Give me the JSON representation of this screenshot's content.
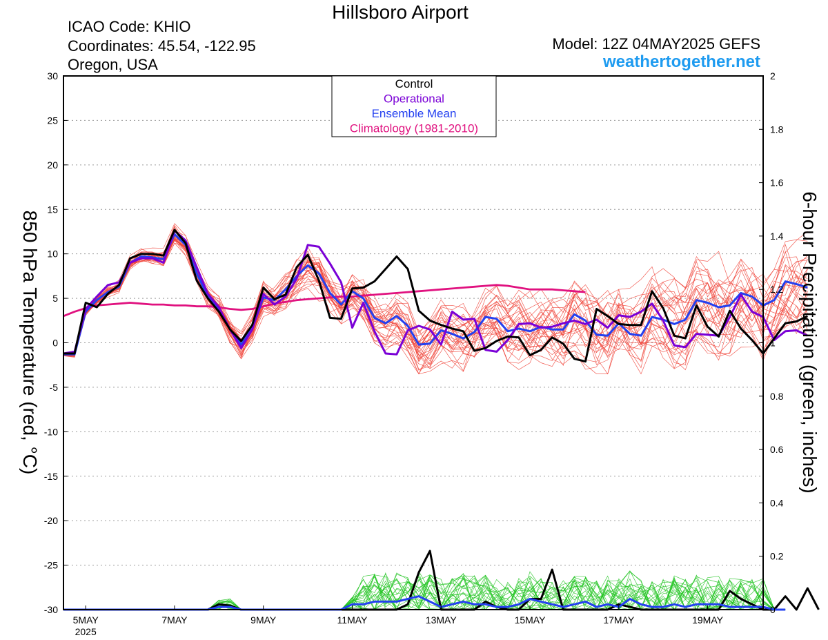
{
  "header": {
    "title": "Hillsboro Airport",
    "icao": "ICAO Code: KHIO",
    "coordinates": "Coordinates: 45.54, -122.95",
    "region": "Oregon, USA",
    "model": "Model: 12Z 04MAY2025 GEFS",
    "site": "weathertogether.net"
  },
  "chart_data": {
    "type": "line",
    "title": "Hillsboro Airport",
    "ylabel": "850 hPa Temperature (red, °C)",
    "y2label": "6-hour Precipitation (green, inches)",
    "ylim": [
      -30,
      30
    ],
    "y2lim": [
      0,
      2
    ],
    "xlim": [
      0,
      63
    ],
    "x_unit": "6-hour steps from 12Z 04MAY2025",
    "yticks": [
      "30",
      "25",
      "20",
      "15",
      "10",
      "5",
      "0",
      "-5",
      "-10",
      "-15",
      "-20",
      "-25",
      "-30"
    ],
    "y2ticks": [
      "2",
      "1.8",
      "1.6",
      "1.4",
      "1.2",
      "1",
      "0.8",
      "0.6",
      "0.4",
      "0.2",
      "0"
    ],
    "xticks": [
      {
        "label": "5MAY",
        "sub": "2025",
        "x": 2
      },
      {
        "label": "7MAY",
        "sub": "",
        "x": 10
      },
      {
        "label": "9MAY",
        "sub": "",
        "x": 18
      },
      {
        "label": "11MAY",
        "sub": "",
        "x": 26
      },
      {
        "label": "13MAY",
        "sub": "",
        "x": 34
      },
      {
        "label": "15MAY",
        "sub": "",
        "x": 42
      },
      {
        "label": "17MAY",
        "sub": "",
        "x": 50
      },
      {
        "label": "19MAY",
        "sub": "",
        "x": 58
      }
    ],
    "grid": true,
    "legend": {
      "placement": "top-center",
      "entries": [
        {
          "name": "Control",
          "color": "#000000"
        },
        {
          "name": "Operational",
          "color": "#7a00d6"
        },
        {
          "name": "Ensemble Mean",
          "color": "#2340f0"
        },
        {
          "name": "Climatology (1981-2010)",
          "color": "#e0117f"
        }
      ]
    },
    "series": [
      {
        "name": "Climatology (1981-2010)",
        "color": "#e0117f",
        "axis": "temp",
        "values": [
          3.0,
          3.5,
          3.9,
          4.2,
          4.3,
          4.4,
          4.5,
          4.4,
          4.3,
          4.3,
          4.2,
          4.2,
          4.1,
          4.1,
          4.0,
          3.8,
          3.7,
          3.8,
          4.1,
          4.4,
          4.6,
          4.8,
          4.9,
          5.0,
          5.1,
          5.2,
          5.2,
          5.3,
          5.4,
          5.5,
          5.6,
          5.7,
          5.8,
          5.9,
          6.0,
          6.1,
          6.2,
          6.3,
          6.4,
          6.5,
          6.4,
          6.2,
          6.0,
          6.0,
          6.0,
          5.9,
          5.8,
          5.7
        ]
      },
      {
        "name": "Control",
        "color": "#000000",
        "axis": "temp",
        "values": [
          -1.2,
          -1.2,
          4.5,
          4.0,
          5.5,
          6.5,
          9.5,
          10.0,
          10.0,
          9.8,
          12.7,
          11.2,
          7.0,
          5.0,
          3.5,
          1.5,
          0.2,
          2.0,
          6.2,
          4.9,
          5.4,
          8.5,
          9.9,
          7.0,
          2.8,
          2.7,
          6.1,
          6.2,
          6.9,
          8.3,
          9.7,
          8.3,
          3.6,
          2.5,
          2.0,
          1.6,
          1.3,
          -0.9,
          -0.6,
          0.2,
          0.7,
          0.6,
          -1.4,
          -0.8,
          0.6,
          -0.1,
          -1.8,
          -2.1,
          3.8,
          3.0,
          2.1,
          2.0,
          2.0,
          5.8,
          3.9,
          0.8,
          0.5,
          4.2,
          1.8,
          0.7,
          3.6,
          1.6,
          0.3,
          -1.2,
          0.5,
          2.2,
          2.4,
          3.0
        ]
      },
      {
        "name": "Operational",
        "color": "#7a00d6",
        "axis": "temp",
        "values": [
          -1.2,
          -1.0,
          3.8,
          5.2,
          6.5,
          6.8,
          9.0,
          9.5,
          9.5,
          9.0,
          12.6,
          11.5,
          8.5,
          5.5,
          4.0,
          1.5,
          -0.6,
          1.5,
          5.5,
          4.3,
          5.2,
          7.2,
          11.0,
          10.8,
          8.9,
          6.8,
          1.7,
          4.5,
          1.3,
          -1.2,
          -1.3,
          1.4,
          1.9,
          1.5,
          -0.2,
          3.5,
          2.6,
          2.7,
          -0.8,
          -1.0,
          0.3,
          2.1,
          2.2,
          1.7,
          1.8,
          2.2,
          2.5,
          2.1,
          2.6,
          1.7,
          3.1,
          2.9,
          3.5,
          4.4,
          2.5,
          -0.3,
          -0.5,
          1.0,
          0.9,
          0.8,
          2.9,
          5.4,
          3.5,
          2.9,
          0.3,
          1.3,
          1.4,
          0.8
        ]
      },
      {
        "name": "Ensemble Mean",
        "color": "#2340f0",
        "axis": "temp",
        "values": [
          -1.3,
          -1.3,
          3.5,
          4.8,
          5.7,
          6.3,
          9.0,
          9.7,
          9.6,
          9.4,
          12.2,
          11.0,
          7.8,
          5.2,
          3.8,
          1.5,
          -0.2,
          1.6,
          5.1,
          4.8,
          6.0,
          7.5,
          8.7,
          7.8,
          5.6,
          4.3,
          5.8,
          5.0,
          2.8,
          2.2,
          3.0,
          1.9,
          -0.2,
          -0.1,
          1.4,
          1.0,
          0.5,
          1.2,
          2.9,
          2.7,
          1.3,
          1.6,
          1.3,
          1.8,
          1.5,
          1.5,
          3.2,
          2.5,
          0.9,
          0.8,
          2.2,
          1.0,
          0.8,
          2.9,
          2.6,
          2.1,
          2.6,
          4.8,
          4.5,
          4.0,
          4.2,
          5.6,
          5.2,
          4.2,
          4.8,
          6.9,
          6.6,
          6.2
        ]
      },
      {
        "name": "Control precip",
        "color": "#000000",
        "axis": "precip",
        "values": [
          0,
          0,
          0,
          0,
          0,
          0,
          0,
          0,
          0,
          0,
          0,
          0,
          0,
          0,
          0.02,
          0.015,
          0,
          0,
          0,
          0,
          0,
          0,
          0,
          0,
          0,
          0,
          0,
          0,
          0,
          0,
          0,
          0.02,
          0.14,
          0.22,
          0,
          0,
          0,
          0,
          0.03,
          0.01,
          0,
          0,
          0.04,
          0.04,
          0.15,
          0,
          0,
          0,
          0,
          0,
          0.02,
          0.01,
          0,
          0,
          0,
          0,
          0,
          0,
          0,
          0,
          0.07,
          0.04,
          0.02,
          0,
          0,
          0.05,
          0,
          0.08,
          0
        ]
      },
      {
        "name": "Ensemble Mean precip",
        "color": "#2340f0",
        "axis": "precip",
        "values": [
          0,
          0,
          0,
          0,
          0,
          0,
          0,
          0,
          0,
          0,
          0,
          0,
          0,
          0,
          0.01,
          0.01,
          0,
          0,
          0,
          0,
          0,
          0,
          0,
          0,
          0,
          0,
          0.02,
          0.02,
          0.03,
          0.03,
          0.03,
          0.04,
          0.05,
          0.03,
          0.01,
          0.02,
          0.03,
          0.02,
          0.02,
          0.01,
          0.01,
          0.02,
          0.04,
          0.03,
          0.02,
          0.01,
          0.02,
          0.03,
          0.01,
          0.02,
          0.01,
          0.04,
          0.02,
          0.01,
          0.01,
          0.02,
          0.01,
          0.02,
          0.02,
          0.02,
          0.01,
          0.01,
          0.01,
          0.01,
          0,
          0
        ]
      }
    ]
  }
}
